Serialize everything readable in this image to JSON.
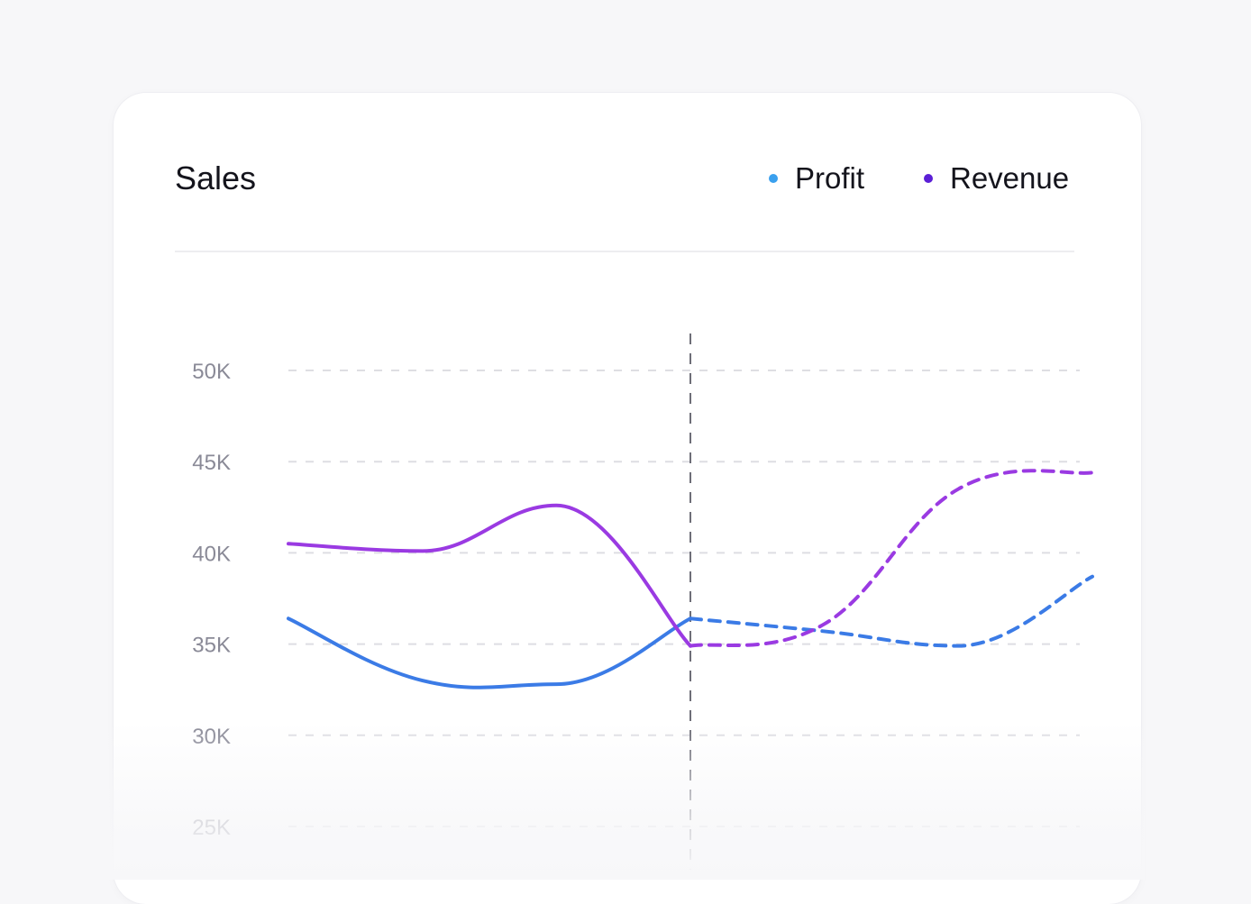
{
  "chart_data": {
    "type": "line",
    "title": "Sales",
    "xlabel": "",
    "ylabel": "",
    "ylim": [
      25000,
      50000
    ],
    "y_ticks": [
      {
        "value": 50000,
        "label": "50K"
      },
      {
        "value": 45000,
        "label": "45K"
      },
      {
        "value": 40000,
        "label": "40K"
      },
      {
        "value": 35000,
        "label": "35K"
      },
      {
        "value": 30000,
        "label": "30K"
      },
      {
        "value": 25000,
        "label": "25K"
      }
    ],
    "x": [
      0,
      1,
      2,
      3,
      4,
      5,
      6
    ],
    "divider_x": 3,
    "series": [
      {
        "name": "Profit",
        "color": "#3b7be6",
        "legend_color": "#3aa0ee",
        "values": [
          36400,
          33000,
          32800,
          36400,
          35700,
          34900,
          38700
        ]
      },
      {
        "name": "Revenue",
        "color": "#9a3ae2",
        "legend_color": "#5b1fd6",
        "values": [
          40500,
          40100,
          42600,
          34900,
          36100,
          43500,
          44400
        ]
      }
    ],
    "legend_position": "top-right",
    "solid_before_divider": true,
    "dashed_after_divider": true
  }
}
